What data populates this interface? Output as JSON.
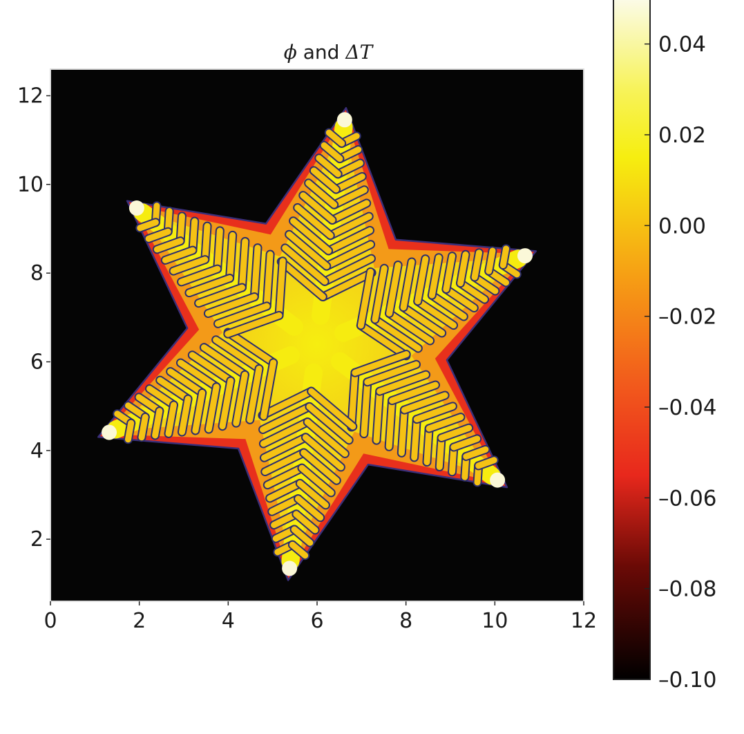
{
  "chart_data": {
    "type": "heatmap",
    "title_parts": {
      "phi": "ϕ",
      "and": " and ",
      "delta_t": "ΔT"
    },
    "xlabel": "",
    "ylabel": "",
    "xlim": [
      0,
      12
    ],
    "ylim": [
      0.6,
      12.6
    ],
    "x_ticks": [
      {
        "value": 0,
        "label": "0"
      },
      {
        "value": 2,
        "label": "2"
      },
      {
        "value": 4,
        "label": "4"
      },
      {
        "value": 6,
        "label": "6"
      },
      {
        "value": 8,
        "label": "8"
      },
      {
        "value": 10,
        "label": "10"
      },
      {
        "value": 12,
        "label": "12"
      }
    ],
    "y_ticks": [
      {
        "value": 2,
        "label": "2"
      },
      {
        "value": 4,
        "label": "4"
      },
      {
        "value": 6,
        "label": "6"
      },
      {
        "value": 8,
        "label": "8"
      },
      {
        "value": 10,
        "label": "10"
      },
      {
        "value": 12,
        "label": "12"
      }
    ],
    "grid": false,
    "colormap": "hot",
    "colorbar": {
      "range": [
        -0.1,
        0.05
      ],
      "ticks": [
        {
          "value": 0.04,
          "label": "0.04"
        },
        {
          "value": 0.02,
          "label": "0.02"
        },
        {
          "value": 0.0,
          "label": "0.00"
        },
        {
          "value": -0.02,
          "label": "–0.02"
        },
        {
          "value": -0.04,
          "label": "–0.04"
        },
        {
          "value": -0.06,
          "label": "–0.06"
        },
        {
          "value": -0.08,
          "label": "–0.08"
        },
        {
          "value": -0.1,
          "label": "–0.10"
        }
      ],
      "stops": [
        {
          "value": -0.1,
          "color": "#000000"
        },
        {
          "value": -0.075,
          "color": "#6b0a06"
        },
        {
          "value": -0.055,
          "color": "#e8281c"
        },
        {
          "value": -0.035,
          "color": "#f25a1c"
        },
        {
          "value": -0.01,
          "color": "#f6a214"
        },
        {
          "value": 0.015,
          "color": "#f6ee10"
        },
        {
          "value": 0.03,
          "color": "#f7f35a"
        },
        {
          "value": 0.05,
          "color": "#fbfbe8"
        }
      ]
    },
    "crystal": {
      "center": [
        6.0,
        6.4
      ],
      "arms": 6,
      "arm_angles_deg": [
        83,
        23,
        -37,
        -97,
        -157,
        143
      ],
      "arm_length": 5.35,
      "contour_color": "#2a2d6e",
      "background_value": -0.1
    }
  }
}
